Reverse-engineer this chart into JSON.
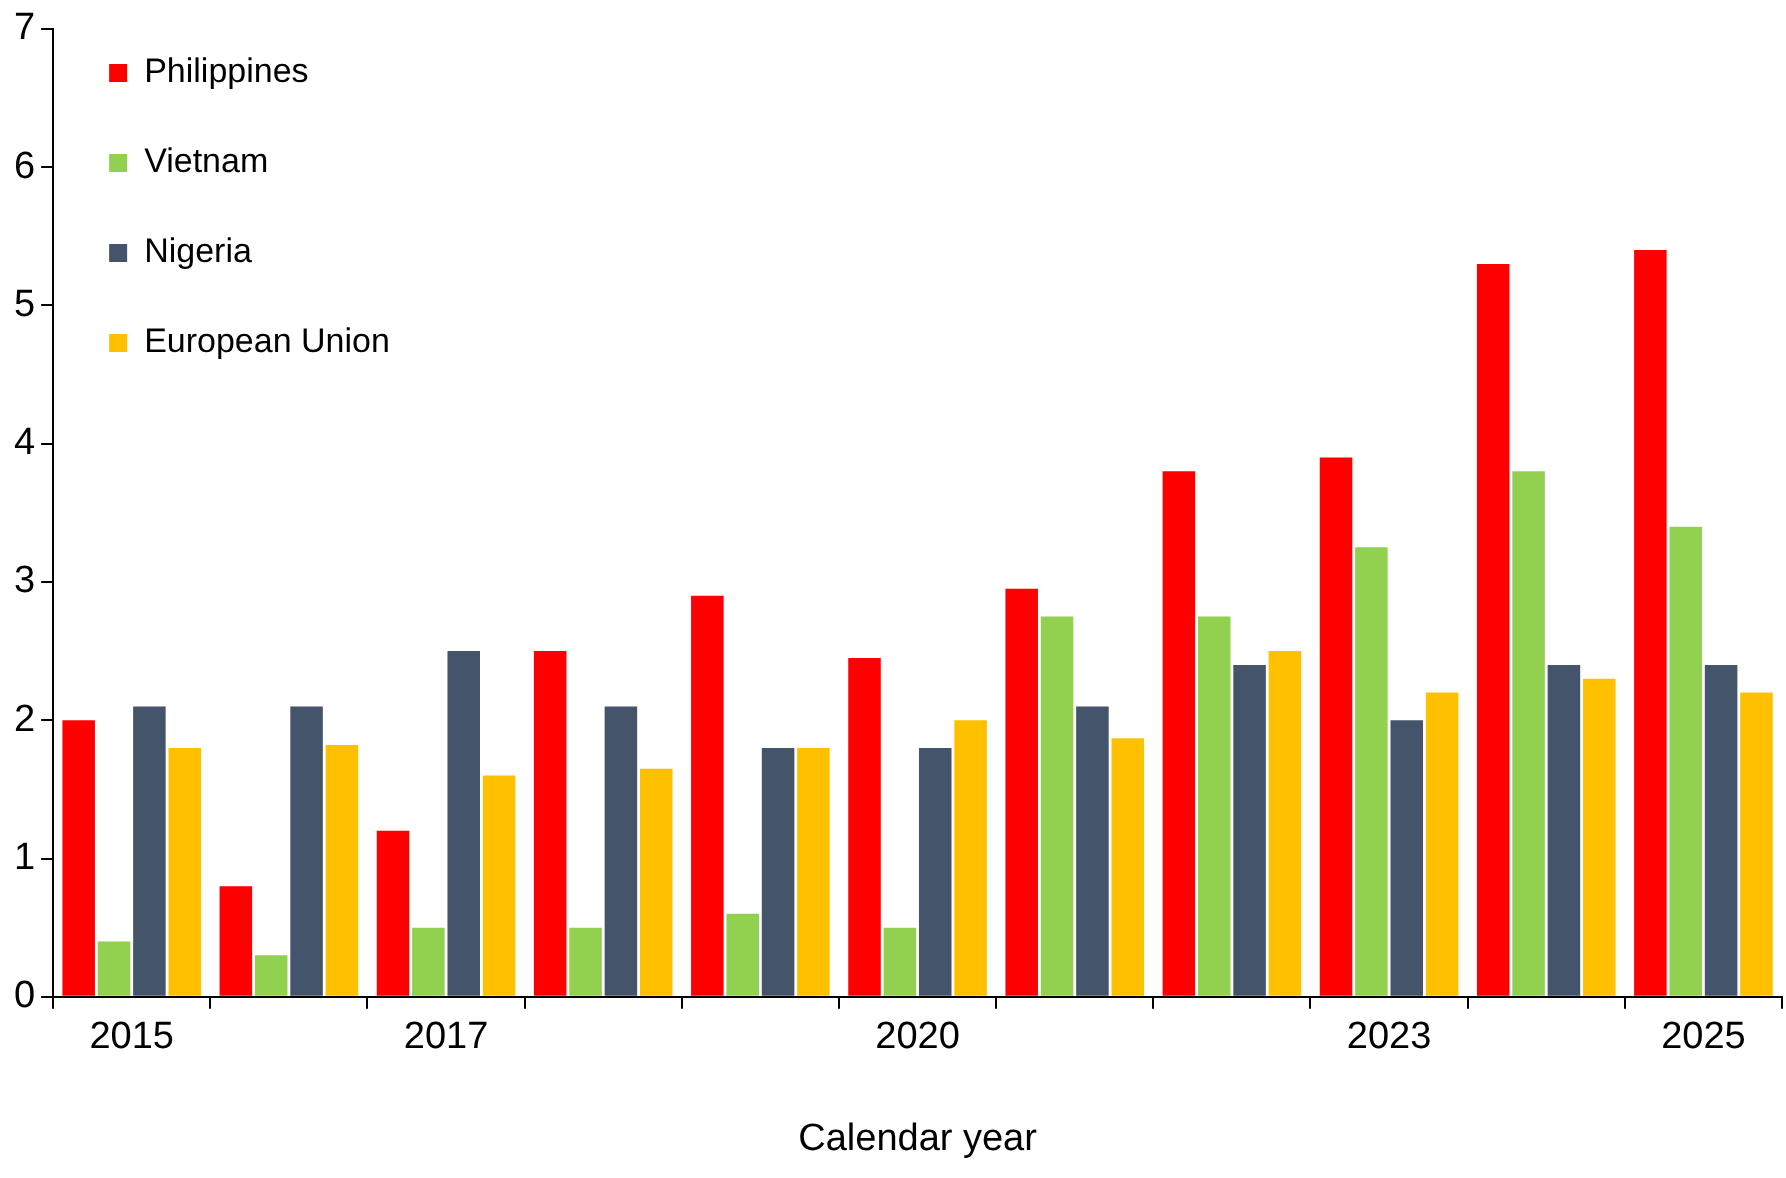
{
  "chart_data": {
    "type": "bar",
    "xlabel": "Calendar year",
    "categories": [
      "2015",
      null,
      "2017",
      null,
      null,
      "2020",
      null,
      null,
      "2023",
      null,
      "2025"
    ],
    "series": [
      {
        "name": "Philippines",
        "color": "#ff0000",
        "values": [
          2.0,
          0.8,
          1.2,
          2.5,
          2.9,
          2.45,
          2.95,
          3.8,
          3.9,
          5.3,
          5.4
        ]
      },
      {
        "name": "Vietnam",
        "color": "#92d050",
        "values": [
          0.4,
          0.3,
          0.5,
          0.5,
          0.6,
          0.5,
          2.75,
          2.75,
          3.25,
          3.8,
          3.4
        ]
      },
      {
        "name": "Nigeria",
        "color": "#44546a",
        "values": [
          2.1,
          2.1,
          2.5,
          2.1,
          1.8,
          1.8,
          2.1,
          2.4,
          2.0,
          2.4,
          2.4
        ]
      },
      {
        "name": "European Union",
        "color": "#ffc000",
        "values": [
          1.8,
          1.82,
          1.6,
          1.65,
          1.8,
          2.0,
          1.87,
          2.5,
          2.2,
          2.3,
          2.2
        ]
      }
    ],
    "ylim": [
      0,
      7
    ],
    "yticks": [
      0,
      1,
      2,
      3,
      4,
      5,
      6,
      7
    ],
    "grid": false,
    "legend": "top left"
  }
}
